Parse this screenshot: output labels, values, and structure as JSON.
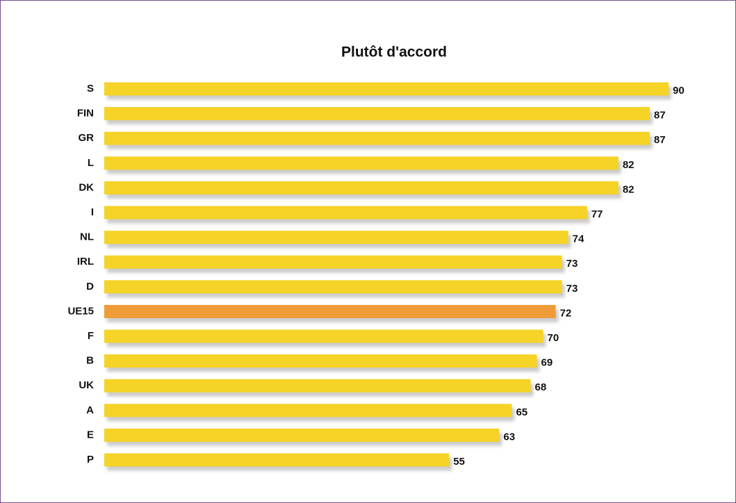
{
  "chart_data": {
    "type": "bar",
    "orientation": "horizontal",
    "title": "Plutôt d'accord",
    "categories": [
      "S",
      "FIN",
      "GR",
      "L",
      "DK",
      "I",
      "NL",
      "IRL",
      "D",
      "UE15",
      "F",
      "B",
      "UK",
      "A",
      "E",
      "P"
    ],
    "values": [
      90,
      87,
      87,
      82,
      82,
      77,
      74,
      73,
      73,
      72,
      70,
      69,
      68,
      65,
      63,
      55
    ],
    "colors": [
      "#f5d327",
      "#f5d327",
      "#f5d327",
      "#f5d327",
      "#f5d327",
      "#f5d327",
      "#f5d327",
      "#f5d327",
      "#f5d327",
      "#ef9c38",
      "#f5d327",
      "#f5d327",
      "#f5d327",
      "#f5d327",
      "#f5d327",
      "#f5d327"
    ]
  }
}
